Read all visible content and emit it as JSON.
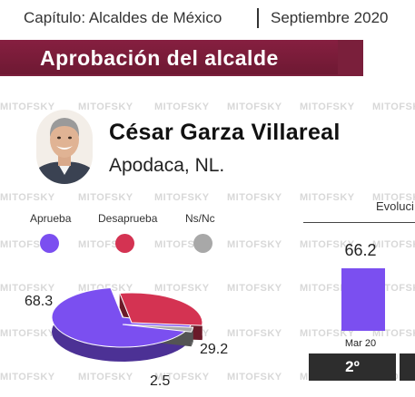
{
  "header": {
    "chapter": "Capítulo: Alcaldes de México",
    "date": "Septiembre 2020"
  },
  "banner": {
    "title": "Aprobación del alcalde"
  },
  "profile": {
    "name": "César Garza Villareal",
    "place": "Apodaca, NL."
  },
  "watermark": "MITOFSKY",
  "colors": {
    "aprueba": "#7b4ff0",
    "desaprueba": "#d43352",
    "nsnc": "#a8a8a8",
    "banner": "#7a1f3b",
    "rank": "#2d2d2d"
  },
  "chart_data": [
    {
      "type": "pie",
      "categories": [
        "Aprueba",
        "Desaprueba",
        "Ns/Nc"
      ],
      "values": [
        68.3,
        29.2,
        2.5
      ],
      "value_labels": [
        "68.3",
        "29.2",
        "2.5"
      ],
      "legend_placement": "top"
    },
    {
      "type": "bar",
      "title": "Evoluci",
      "categories": [
        "Mar 20"
      ],
      "values": [
        66.2
      ],
      "value_labels": [
        "66.2"
      ],
      "rank_labels": [
        "2º"
      ]
    }
  ]
}
